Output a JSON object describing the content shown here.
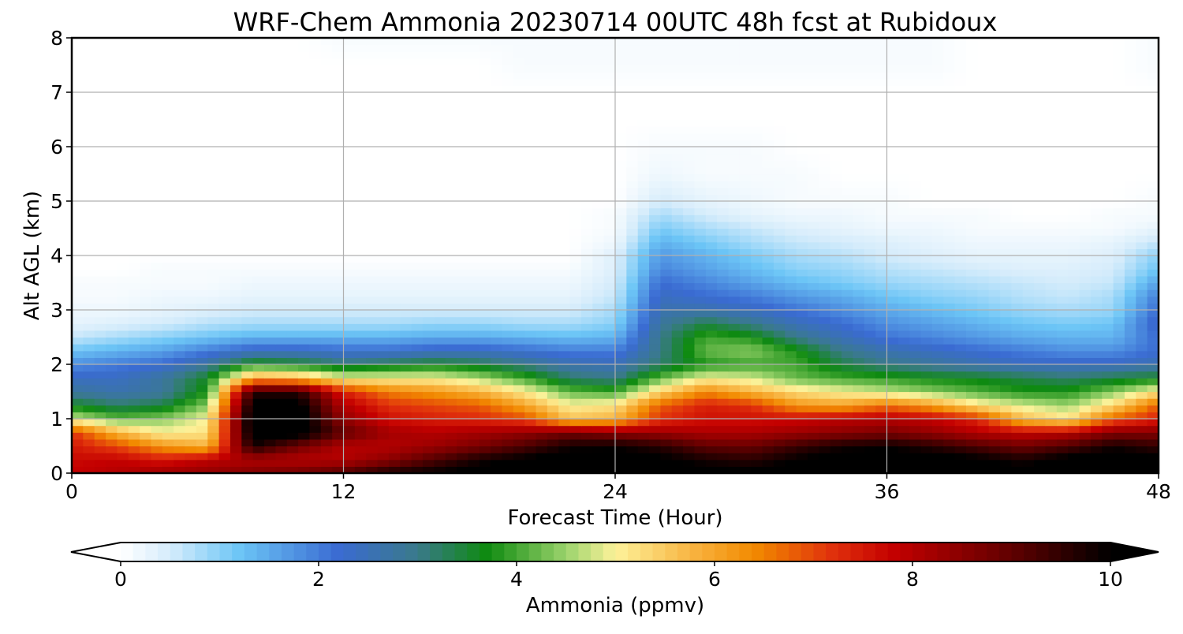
{
  "chart_data": {
    "type": "heatmap",
    "title": "WRF-Chem Ammonia  20230714 00UTC 48h fcst at Rubidoux",
    "xlabel": "Forecast Time (Hour)",
    "ylabel": "Alt AGL (km)",
    "xlim": [
      0,
      48
    ],
    "ylim": [
      0,
      8
    ],
    "xticks": [
      0,
      12,
      24,
      36,
      48
    ],
    "yticks": [
      0,
      1,
      2,
      3,
      4,
      5,
      6,
      7,
      8
    ],
    "grid": true,
    "colorbar": {
      "label": "Ammonia  (ppmv)",
      "range": [
        0,
        10
      ],
      "ticks": [
        0,
        2,
        4,
        6,
        8,
        10
      ],
      "extend": "both",
      "stops": [
        {
          "value": 0,
          "color": "#ffffff"
        },
        {
          "value": 0.5,
          "color": "#d5ecfb"
        },
        {
          "value": 1.2,
          "color": "#6cc5f6"
        },
        {
          "value": 2.2,
          "color": "#3a6bd2"
        },
        {
          "value": 3.0,
          "color": "#3a7a8a"
        },
        {
          "value": 3.7,
          "color": "#0e8a10"
        },
        {
          "value": 4.5,
          "color": "#9bd36c"
        },
        {
          "value": 5.0,
          "color": "#fdf29a"
        },
        {
          "value": 5.8,
          "color": "#f8b23e"
        },
        {
          "value": 6.4,
          "color": "#f28a00"
        },
        {
          "value": 7.2,
          "color": "#e0300c"
        },
        {
          "value": 7.8,
          "color": "#c40000"
        },
        {
          "value": 9.0,
          "color": "#600000"
        },
        {
          "value": 10,
          "color": "#000000"
        }
      ]
    },
    "hours": [
      0,
      2,
      4,
      6,
      8,
      10,
      12,
      14,
      16,
      18,
      20,
      22,
      24,
      26,
      28,
      30,
      32,
      34,
      36,
      38,
      40,
      42,
      44,
      46,
      48
    ],
    "altitudes_km": [
      0,
      0.25,
      0.5,
      0.75,
      1,
      1.25,
      1.5,
      1.75,
      2,
      2.25,
      2.5,
      2.75,
      3,
      3.25,
      3.5,
      3.75,
      4,
      4.25,
      4.5,
      4.75,
      5,
      5.5,
      6,
      6.5,
      7,
      7.5,
      8
    ],
    "values": [
      [
        7.8,
        8.0,
        8.3,
        8.4,
        8.6,
        8.8,
        9.2,
        9.8,
        10.0,
        10.2,
        10.5,
        10.6,
        10.5,
        10.3,
        10.1,
        10.1,
        10.3,
        10.5,
        10.6,
        10.5,
        10.3,
        10.1,
        10.5,
        10.6,
        10.3
      ],
      [
        7.7,
        7.8,
        7.5,
        7.9,
        8.1,
        8.0,
        8.0,
        8.5,
        9.2,
        9.8,
        10.1,
        10.4,
        10.3,
        10.1,
        9.8,
        9.6,
        10.0,
        10.3,
        10.4,
        10.3,
        10.1,
        9.8,
        10.2,
        10.4,
        10.1
      ],
      [
        7.5,
        7.0,
        6.2,
        5.8,
        9.8,
        8.8,
        8.0,
        8.0,
        8.3,
        8.7,
        9.2,
        9.8,
        9.9,
        9.6,
        9.0,
        8.9,
        9.4,
        9.8,
        9.9,
        9.6,
        9.2,
        8.8,
        9.2,
        9.8,
        9.5
      ],
      [
        7.2,
        5.8,
        5.0,
        5.2,
        10.3,
        10.3,
        9.0,
        8.2,
        8.0,
        8.2,
        8.4,
        8.8,
        8.5,
        8.3,
        8.1,
        8.1,
        8.3,
        8.5,
        8.7,
        8.4,
        8.0,
        7.8,
        7.9,
        8.6,
        8.6
      ],
      [
        4.8,
        4.2,
        4.4,
        5.0,
        10.4,
        10.4,
        8.4,
        7.6,
        7.4,
        7.3,
        7.0,
        5.6,
        5.8,
        7.2,
        7.6,
        7.6,
        7.7,
        7.9,
        8.0,
        7.8,
        7.3,
        5.7,
        5.2,
        6.8,
        7.4
      ],
      [
        3.6,
        3.2,
        3.4,
        4.4,
        10.2,
        10.2,
        8.0,
        7.2,
        7.0,
        6.8,
        6.0,
        5.0,
        5.2,
        6.8,
        7.4,
        7.2,
        6.2,
        6.0,
        6.6,
        6.1,
        5.2,
        4.8,
        4.5,
        5.3,
        6.8
      ],
      [
        2.8,
        2.6,
        2.8,
        3.8,
        9.6,
        9.6,
        7.4,
        6.5,
        6.2,
        5.8,
        5.1,
        4.2,
        4.0,
        5.4,
        6.4,
        5.8,
        5.3,
        5.0,
        4.7,
        4.4,
        4.1,
        3.8,
        3.8,
        4.4,
        5.2
      ],
      [
        2.4,
        2.4,
        2.8,
        3.6,
        6.0,
        5.8,
        5.0,
        5.0,
        5.0,
        4.6,
        4.0,
        3.2,
        3.0,
        4.2,
        5.0,
        4.8,
        4.2,
        4.0,
        3.9,
        3.7,
        3.6,
        3.4,
        3.2,
        3.4,
        3.6
      ],
      [
        1.8,
        2.0,
        2.2,
        2.8,
        3.8,
        3.6,
        3.2,
        3.4,
        3.6,
        3.4,
        3.0,
        2.6,
        2.5,
        3.2,
        3.8,
        4.0,
        4.0,
        3.4,
        3.0,
        2.8,
        2.6,
        2.4,
        2.4,
        2.4,
        2.6
      ],
      [
        1.2,
        1.4,
        1.6,
        2.0,
        2.4,
        2.4,
        2.2,
        2.2,
        2.4,
        2.4,
        2.2,
        2.0,
        2.0,
        3.0,
        4.2,
        4.4,
        3.8,
        3.0,
        2.6,
        2.4,
        2.2,
        2.0,
        1.8,
        1.8,
        2.2
      ],
      [
        0.6,
        0.8,
        1.0,
        1.2,
        1.4,
        1.4,
        1.4,
        1.4,
        1.5,
        1.5,
        1.4,
        1.3,
        1.4,
        3.0,
        4.0,
        3.8,
        3.0,
        2.5,
        2.1,
        1.9,
        1.7,
        1.5,
        1.4,
        1.4,
        2.2
      ],
      [
        0.3,
        0.4,
        0.5,
        0.7,
        0.8,
        0.8,
        0.8,
        0.8,
        0.9,
        0.9,
        0.8,
        0.8,
        1.0,
        2.8,
        3.4,
        3.0,
        2.5,
        2.2,
        1.8,
        1.6,
        1.4,
        1.2,
        1.1,
        1.2,
        2.4
      ],
      [
        0.2,
        0.2,
        0.3,
        0.4,
        0.5,
        0.5,
        0.5,
        0.5,
        0.5,
        0.5,
        0.5,
        0.5,
        0.8,
        2.6,
        2.6,
        2.4,
        2.1,
        1.8,
        1.5,
        1.3,
        1.1,
        0.9,
        0.8,
        0.9,
        2.2
      ],
      [
        0.1,
        0.1,
        0.2,
        0.2,
        0.3,
        0.3,
        0.3,
        0.3,
        0.3,
        0.3,
        0.3,
        0.3,
        0.6,
        2.4,
        2.2,
        2.0,
        1.7,
        1.5,
        1.2,
        1.0,
        0.9,
        0.7,
        0.6,
        0.8,
        2.0
      ],
      [
        0.1,
        0.1,
        0.1,
        0.1,
        0.2,
        0.2,
        0.2,
        0.2,
        0.2,
        0.2,
        0.2,
        0.2,
        0.5,
        2.2,
        1.9,
        1.6,
        1.3,
        1.1,
        0.9,
        0.8,
        0.7,
        0.6,
        0.5,
        0.6,
        1.6
      ],
      [
        0.0,
        0.0,
        0.1,
        0.1,
        0.1,
        0.1,
        0.1,
        0.1,
        0.1,
        0.1,
        0.1,
        0.1,
        0.4,
        1.9,
        1.6,
        1.3,
        1.0,
        0.9,
        0.7,
        0.6,
        0.5,
        0.4,
        0.4,
        0.5,
        1.2
      ],
      [
        0.0,
        0.0,
        0.0,
        0.0,
        0.0,
        0.0,
        0.0,
        0.0,
        0.0,
        0.0,
        0.0,
        0.0,
        0.4,
        1.7,
        1.4,
        1.1,
        0.8,
        0.7,
        0.5,
        0.4,
        0.3,
        0.3,
        0.3,
        0.4,
        1.0
      ],
      [
        0.0,
        0.0,
        0.0,
        0.0,
        0.0,
        0.0,
        0.0,
        0.0,
        0.0,
        0.0,
        0.0,
        0.0,
        0.2,
        1.4,
        1.1,
        0.8,
        0.6,
        0.5,
        0.4,
        0.3,
        0.2,
        0.2,
        0.2,
        0.3,
        0.6
      ],
      [
        0.0,
        0.0,
        0.0,
        0.0,
        0.0,
        0.0,
        0.0,
        0.0,
        0.0,
        0.0,
        0.0,
        0.0,
        0.1,
        1.1,
        0.8,
        0.6,
        0.4,
        0.3,
        0.2,
        0.2,
        0.1,
        0.1,
        0.1,
        0.1,
        0.3
      ],
      [
        0.0,
        0.0,
        0.0,
        0.0,
        0.0,
        0.0,
        0.0,
        0.0,
        0.0,
        0.0,
        0.0,
        0.0,
        0.1,
        0.8,
        0.5,
        0.3,
        0.2,
        0.2,
        0.1,
        0.1,
        0.1,
        0.0,
        0.0,
        0.1,
        0.1
      ],
      [
        0.0,
        0.0,
        0.0,
        0.0,
        0.0,
        0.0,
        0.0,
        0.0,
        0.0,
        0.0,
        0.0,
        0.0,
        0.0,
        0.5,
        0.3,
        0.2,
        0.1,
        0.1,
        0.1,
        0.0,
        0.0,
        0.0,
        0.0,
        0.0,
        0.1
      ],
      [
        0.0,
        0.0,
        0.0,
        0.0,
        0.0,
        0.0,
        0.0,
        0.0,
        0.0,
        0.0,
        0.0,
        0.0,
        0.0,
        0.2,
        0.1,
        0.1,
        0.1,
        0.0,
        0.0,
        0.0,
        0.0,
        0.0,
        0.0,
        0.0,
        0.0
      ],
      [
        0.0,
        0.0,
        0.0,
        0.0,
        0.0,
        0.0,
        0.0,
        0.0,
        0.0,
        0.0,
        0.0,
        0.0,
        0.0,
        0.1,
        0.1,
        0.1,
        0.0,
        0.0,
        0.0,
        0.0,
        0.0,
        0.0,
        0.0,
        0.0,
        0.0
      ],
      [
        0.0,
        0.0,
        0.0,
        0.0,
        0.0,
        0.0,
        0.0,
        0.0,
        0.0,
        0.0,
        0.0,
        0.0,
        0.0,
        0.0,
        0.0,
        0.0,
        0.0,
        0.0,
        0.0,
        0.0,
        0.0,
        0.0,
        0.0,
        0.0,
        0.0
      ],
      [
        0.0,
        0.0,
        0.0,
        0.0,
        0.0,
        0.0,
        0.0,
        0.0,
        0.0,
        0.0,
        0.0,
        0.0,
        0.0,
        0.0,
        0.0,
        0.0,
        0.0,
        0.0,
        0.0,
        0.0,
        0.0,
        0.0,
        0.0,
        0.0,
        0.0
      ],
      [
        0.0,
        0.0,
        0.0,
        0.0,
        0.0,
        0.0,
        0.0,
        0.0,
        0.0,
        0.0,
        0.1,
        0.1,
        0.1,
        0.1,
        0.1,
        0.1,
        0.1,
        0.1,
        0.1,
        0.1,
        0.0,
        0.0,
        0.0,
        0.0,
        0.1
      ],
      [
        0.0,
        0.0,
        0.0,
        0.0,
        0.0,
        0.0,
        0.1,
        0.1,
        0.1,
        0.1,
        0.1,
        0.1,
        0.1,
        0.1,
        0.1,
        0.1,
        0.1,
        0.1,
        0.1,
        0.1,
        0.0,
        0.0,
        0.0,
        0.0,
        0.1
      ]
    ]
  }
}
